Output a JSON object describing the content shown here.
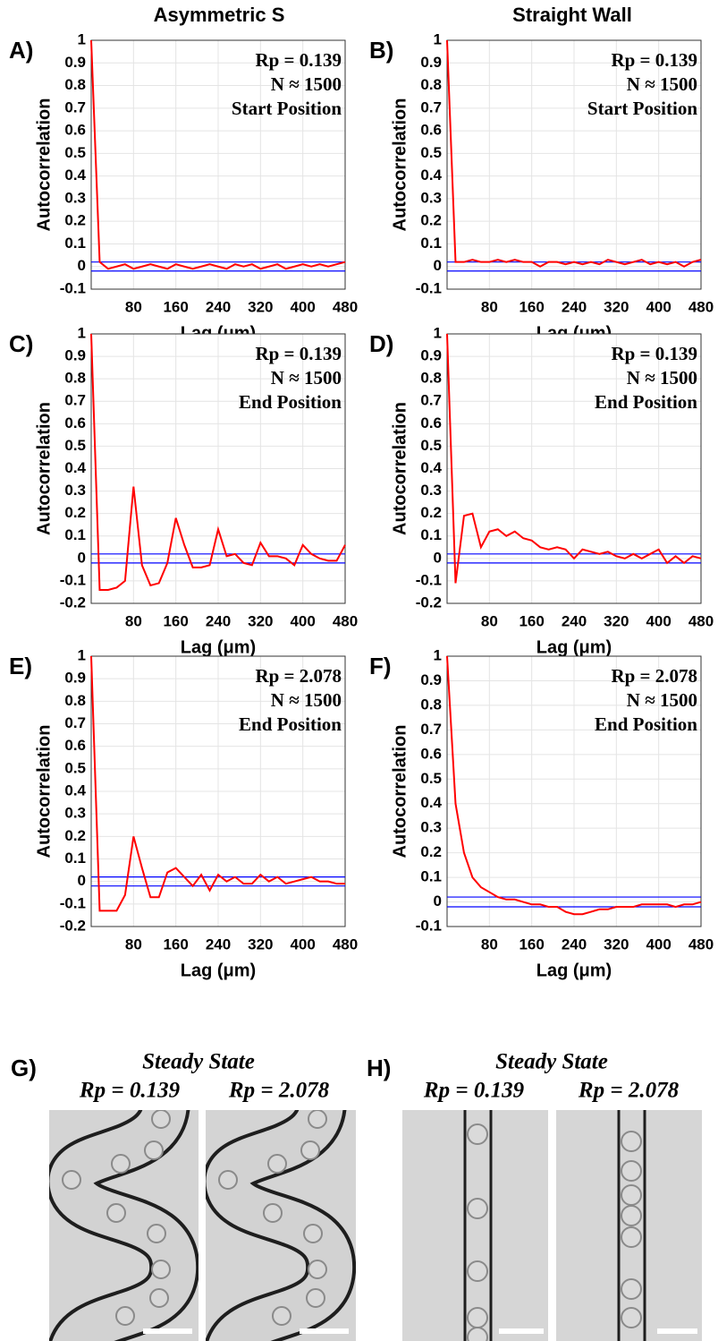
{
  "columns": [
    "Asymmetric S",
    "Straight Wall"
  ],
  "chart_data": [
    {
      "type": "line",
      "panel_label": "A)",
      "ylabel": "Autocorrelation",
      "xlabel": "Lag (μm)",
      "annotations": [
        "Rp = 0.139",
        "N ≈ 1500",
        "Start Position"
      ],
      "x": [
        0,
        16,
        32,
        48,
        64,
        80,
        96,
        112,
        128,
        144,
        160,
        176,
        192,
        208,
        224,
        240,
        256,
        272,
        288,
        304,
        320,
        336,
        352,
        368,
        384,
        400,
        416,
        432,
        448,
        464,
        480
      ],
      "values": [
        1,
        0.02,
        -0.01,
        0.0,
        0.01,
        -0.01,
        0.0,
        0.01,
        0.0,
        -0.01,
        0.01,
        0.0,
        -0.01,
        0.0,
        0.01,
        0.0,
        -0.01,
        0.01,
        0.0,
        0.01,
        -0.01,
        0.0,
        0.01,
        -0.01,
        0.0,
        0.01,
        0.0,
        0.01,
        0.0,
        0.01,
        0.02
      ],
      "color": "#ff0000",
      "bounds": [
        0.02,
        -0.02
      ],
      "bounds_color": "#0000ff",
      "xlim": [
        0,
        480
      ],
      "xticks": [
        80,
        160,
        240,
        320,
        400,
        480
      ],
      "ylim": [
        -0.1,
        1
      ],
      "yticks": [
        -0.1,
        0,
        0.1,
        0.2,
        0.3,
        0.4,
        0.5,
        0.6,
        0.7,
        0.8,
        0.9,
        1
      ],
      "grid": true
    },
    {
      "type": "line",
      "panel_label": "B)",
      "ylabel": "Autocorrelation",
      "xlabel": "Lag (μm)",
      "annotations": [
        "Rp = 0.139",
        "N ≈ 1500",
        "Start Position"
      ],
      "x": [
        0,
        16,
        32,
        48,
        64,
        80,
        96,
        112,
        128,
        144,
        160,
        176,
        192,
        208,
        224,
        240,
        256,
        272,
        288,
        304,
        320,
        336,
        352,
        368,
        384,
        400,
        416,
        432,
        448,
        464,
        480
      ],
      "values": [
        1,
        0.02,
        0.02,
        0.03,
        0.02,
        0.02,
        0.03,
        0.02,
        0.03,
        0.02,
        0.02,
        0.0,
        0.02,
        0.02,
        0.01,
        0.02,
        0.01,
        0.02,
        0.01,
        0.03,
        0.02,
        0.01,
        0.02,
        0.03,
        0.01,
        0.02,
        0.01,
        0.02,
        0.0,
        0.02,
        0.03
      ],
      "color": "#ff0000",
      "bounds": [
        0.02,
        -0.02
      ],
      "bounds_color": "#0000ff",
      "xlim": [
        0,
        480
      ],
      "xticks": [
        80,
        160,
        240,
        320,
        400,
        480
      ],
      "ylim": [
        -0.1,
        1
      ],
      "yticks": [
        -0.1,
        0,
        0.1,
        0.2,
        0.3,
        0.4,
        0.5,
        0.6,
        0.7,
        0.8,
        0.9,
        1
      ],
      "grid": true
    },
    {
      "type": "line",
      "panel_label": "C)",
      "ylabel": "Autocorrelation",
      "xlabel": "Lag (μm)",
      "annotations": [
        "Rp = 0.139",
        "N ≈ 1500",
        "End Position"
      ],
      "x": [
        0,
        16,
        32,
        48,
        64,
        80,
        96,
        112,
        128,
        144,
        160,
        176,
        192,
        208,
        224,
        240,
        256,
        272,
        288,
        304,
        320,
        336,
        352,
        368,
        384,
        400,
        416,
        432,
        448,
        464,
        480
      ],
      "values": [
        1,
        -0.14,
        -0.14,
        -0.13,
        -0.1,
        0.32,
        -0.03,
        -0.12,
        -0.11,
        -0.02,
        0.18,
        0.06,
        -0.04,
        -0.04,
        -0.03,
        0.13,
        0.01,
        0.02,
        -0.02,
        -0.03,
        0.07,
        0.01,
        0.01,
        0.0,
        -0.03,
        0.06,
        0.02,
        0.0,
        -0.01,
        -0.01,
        0.06
      ],
      "color": "#ff0000",
      "bounds": [
        0.02,
        -0.02
      ],
      "bounds_color": "#0000ff",
      "xlim": [
        0,
        480
      ],
      "xticks": [
        80,
        160,
        240,
        320,
        400,
        480
      ],
      "ylim": [
        -0.2,
        1
      ],
      "yticks": [
        -0.2,
        -0.1,
        0,
        0.1,
        0.2,
        0.3,
        0.4,
        0.5,
        0.6,
        0.7,
        0.8,
        0.9,
        1
      ],
      "grid": true
    },
    {
      "type": "line",
      "panel_label": "D)",
      "ylabel": "Autocorrelation",
      "xlabel": "Lag (μm)",
      "annotations": [
        "Rp = 0.139",
        "N ≈ 1500",
        "End Position"
      ],
      "x": [
        0,
        16,
        32,
        48,
        64,
        80,
        96,
        112,
        128,
        144,
        160,
        176,
        192,
        208,
        224,
        240,
        256,
        272,
        288,
        304,
        320,
        336,
        352,
        368,
        384,
        400,
        416,
        432,
        448,
        464,
        480
      ],
      "values": [
        1,
        -0.11,
        0.19,
        0.2,
        0.05,
        0.12,
        0.13,
        0.1,
        0.12,
        0.09,
        0.08,
        0.05,
        0.04,
        0.05,
        0.04,
        0.0,
        0.04,
        0.03,
        0.02,
        0.03,
        0.01,
        0.0,
        0.02,
        0.0,
        0.02,
        0.04,
        -0.02,
        0.01,
        -0.02,
        0.01,
        0.0
      ],
      "color": "#ff0000",
      "bounds": [
        0.02,
        -0.02
      ],
      "bounds_color": "#0000ff",
      "xlim": [
        0,
        480
      ],
      "xticks": [
        80,
        160,
        240,
        320,
        400,
        480
      ],
      "ylim": [
        -0.2,
        1
      ],
      "yticks": [
        -0.2,
        -0.1,
        0,
        0.1,
        0.2,
        0.3,
        0.4,
        0.5,
        0.6,
        0.7,
        0.8,
        0.9,
        1
      ],
      "grid": true
    },
    {
      "type": "line",
      "panel_label": "E)",
      "ylabel": "Autocorrelation",
      "xlabel": "Lag (μm)",
      "annotations": [
        "Rp = 2.078",
        "N ≈ 1500",
        "End Position"
      ],
      "x": [
        0,
        16,
        32,
        48,
        64,
        80,
        96,
        112,
        128,
        144,
        160,
        176,
        192,
        208,
        224,
        240,
        256,
        272,
        288,
        304,
        320,
        336,
        352,
        368,
        384,
        400,
        416,
        432,
        448,
        464,
        480
      ],
      "values": [
        1,
        -0.13,
        -0.13,
        -0.13,
        -0.06,
        0.2,
        0.06,
        -0.07,
        -0.07,
        0.04,
        0.06,
        0.02,
        -0.02,
        0.03,
        -0.04,
        0.03,
        0.0,
        0.02,
        -0.01,
        -0.01,
        0.03,
        0.0,
        0.02,
        -0.01,
        0.0,
        0.01,
        0.02,
        0.0,
        0.0,
        -0.01,
        -0.01
      ],
      "color": "#ff0000",
      "bounds": [
        0.02,
        -0.02
      ],
      "bounds_color": "#0000ff",
      "xlim": [
        0,
        480
      ],
      "xticks": [
        80,
        160,
        240,
        320,
        400,
        480
      ],
      "ylim": [
        -0.2,
        1
      ],
      "yticks": [
        -0.2,
        -0.1,
        0,
        0.1,
        0.2,
        0.3,
        0.4,
        0.5,
        0.6,
        0.7,
        0.8,
        0.9,
        1
      ],
      "grid": true
    },
    {
      "type": "line",
      "panel_label": "F)",
      "ylabel": "Autocorrelation",
      "xlabel": "Lag (μm)",
      "annotations": [
        "Rp = 2.078",
        "N ≈ 1500",
        "End Position"
      ],
      "x": [
        0,
        16,
        32,
        48,
        64,
        80,
        96,
        112,
        128,
        144,
        160,
        176,
        192,
        208,
        224,
        240,
        256,
        272,
        288,
        304,
        320,
        336,
        352,
        368,
        384,
        400,
        416,
        432,
        448,
        464,
        480
      ],
      "values": [
        1,
        0.4,
        0.2,
        0.1,
        0.06,
        0.04,
        0.02,
        0.01,
        0.01,
        0.0,
        -0.01,
        -0.01,
        -0.02,
        -0.02,
        -0.04,
        -0.05,
        -0.05,
        -0.04,
        -0.03,
        -0.03,
        -0.02,
        -0.02,
        -0.02,
        -0.01,
        -0.01,
        -0.01,
        -0.01,
        -0.02,
        -0.01,
        -0.01,
        0.0
      ],
      "color": "#ff0000",
      "bounds": [
        0.02,
        -0.02
      ],
      "bounds_color": "#0000ff",
      "xlim": [
        0,
        480
      ],
      "xticks": [
        80,
        160,
        240,
        320,
        400,
        480
      ],
      "ylim": [
        -0.1,
        1
      ],
      "yticks": [
        -0.1,
        0,
        0.1,
        0.2,
        0.3,
        0.4,
        0.5,
        0.6,
        0.7,
        0.8,
        0.9,
        1
      ],
      "grid": true
    }
  ],
  "image_panels": [
    {
      "label": "G)",
      "title": "Steady State",
      "captions": [
        "Rp = 0.139",
        "Rp = 2.078"
      ]
    },
    {
      "label": "H)",
      "title": "Steady State",
      "captions": [
        "Rp = 0.139",
        "Rp = 2.078"
      ]
    }
  ]
}
